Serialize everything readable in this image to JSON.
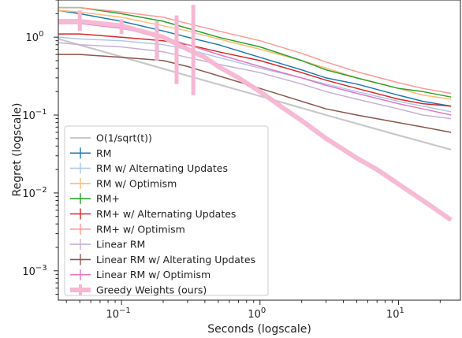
{
  "chart_data": {
    "type": "line",
    "title": "",
    "xlabel": "Seconds (logscale)",
    "ylabel": "Regret (logscale)",
    "xscale": "log",
    "yscale": "log",
    "xlim": [
      0.035,
      28
    ],
    "ylim": [
      0.00042,
      3.0
    ],
    "grid": false,
    "legend_position": "lower-left",
    "x_ticks": [
      {
        "value": 0.1,
        "label": "10",
        "exp": "−1"
      },
      {
        "value": 1,
        "label": "10",
        "exp": "0"
      },
      {
        "value": 10,
        "label": "10",
        "exp": "1"
      }
    ],
    "y_ticks": [
      {
        "value": 0.001,
        "label": "10",
        "exp": "−3"
      },
      {
        "value": 0.01,
        "label": "10",
        "exp": "−2"
      },
      {
        "value": 0.1,
        "label": "10",
        "exp": "−1"
      },
      {
        "value": 1,
        "label": "10",
        "exp": "0"
      }
    ],
    "series": [
      {
        "name": "O(1/sqrt(t))",
        "color": "#c8c8c8",
        "width": 2.2,
        "x": [
          0.035,
          0.1,
          0.3,
          1,
          3,
          10,
          24
        ],
        "y": [
          0.95,
          0.56,
          0.32,
          0.175,
          0.1,
          0.055,
          0.036
        ]
      },
      {
        "name": "RM",
        "color": "#1f77b4",
        "width": 1.5,
        "x": [
          0.035,
          0.05,
          0.1,
          0.2,
          0.3,
          0.5,
          1,
          2,
          3,
          5,
          10,
          15,
          24
        ],
        "y": [
          2.2,
          2.0,
          1.6,
          1.2,
          1.0,
          0.8,
          0.55,
          0.38,
          0.3,
          0.25,
          0.18,
          0.15,
          0.13
        ]
      },
      {
        "name": "RM w/ Alternating Updates",
        "color": "#aec7e8",
        "width": 1.5,
        "x": [
          0.035,
          0.05,
          0.1,
          0.2,
          0.3,
          0.5,
          1,
          2,
          3,
          5,
          10,
          15,
          24
        ],
        "y": [
          1.0,
          0.95,
          0.9,
          0.8,
          0.7,
          0.55,
          0.4,
          0.3,
          0.25,
          0.2,
          0.15,
          0.13,
          0.11
        ]
      },
      {
        "name": "RM w/ Optimism",
        "color": "#ffbb78",
        "width": 1.5,
        "x": [
          0.035,
          0.05,
          0.1,
          0.2,
          0.3,
          0.5,
          1,
          2,
          3,
          5,
          10,
          15,
          24
        ],
        "y": [
          2.2,
          2.1,
          1.8,
          1.4,
          1.2,
          0.95,
          0.7,
          0.5,
          0.4,
          0.3,
          0.22,
          0.18,
          0.16
        ]
      },
      {
        "name": "RM+",
        "color": "#2ca02c",
        "width": 1.5,
        "x": [
          0.035,
          0.05,
          0.1,
          0.2,
          0.3,
          0.5,
          1,
          2,
          3,
          5,
          10,
          15,
          24
        ],
        "y": [
          2.4,
          2.4,
          2.0,
          1.6,
          1.3,
          1.0,
          0.75,
          0.5,
          0.38,
          0.3,
          0.22,
          0.2,
          0.17
        ]
      },
      {
        "name": "RM+ w/ Alternating Updates",
        "color": "#d62728",
        "width": 1.5,
        "x": [
          0.035,
          0.05,
          0.1,
          0.2,
          0.3,
          0.5,
          1,
          2,
          3,
          5,
          10,
          15,
          24
        ],
        "y": [
          1.1,
          1.1,
          1.0,
          0.9,
          0.8,
          0.65,
          0.5,
          0.35,
          0.28,
          0.22,
          0.16,
          0.14,
          0.13
        ]
      },
      {
        "name": "RM+ w/ Optimism",
        "color": "#ff9896",
        "width": 1.5,
        "x": [
          0.035,
          0.05,
          0.1,
          0.2,
          0.3,
          0.5,
          1,
          2,
          3,
          5,
          10,
          15,
          24
        ],
        "y": [
          2.4,
          2.4,
          2.1,
          1.8,
          1.5,
          1.2,
          0.9,
          0.62,
          0.48,
          0.36,
          0.26,
          0.22,
          0.19
        ]
      },
      {
        "name": "Linear RM",
        "color": "#c5b0d5",
        "width": 1.5,
        "x": [
          0.035,
          0.05,
          0.1,
          0.2,
          0.3,
          0.5,
          1,
          2,
          3,
          5,
          10,
          15,
          24
        ],
        "y": [
          0.85,
          0.8,
          0.75,
          0.65,
          0.55,
          0.45,
          0.35,
          0.25,
          0.2,
          0.16,
          0.12,
          0.1,
          0.09
        ]
      },
      {
        "name": "Linear RM w/ Alterating Updates",
        "color": "#8c564b",
        "width": 1.5,
        "x": [
          0.035,
          0.05,
          0.1,
          0.2,
          0.3,
          0.5,
          1,
          2,
          3,
          5,
          10,
          15,
          24
        ],
        "y": [
          0.6,
          0.6,
          0.55,
          0.5,
          0.42,
          0.32,
          0.22,
          0.15,
          0.12,
          0.1,
          0.08,
          0.07,
          0.06
        ]
      },
      {
        "name": "Linear RM w/ Optimism",
        "color": "#e377c2",
        "width": 1.5,
        "x": [
          0.035,
          0.05,
          0.1,
          0.2,
          0.3,
          0.5,
          1,
          2,
          3,
          5,
          10,
          15,
          24
        ],
        "y": [
          1.5,
          1.5,
          1.3,
          1.0,
          0.8,
          0.6,
          0.42,
          0.3,
          0.24,
          0.19,
          0.14,
          0.12,
          0.1
        ]
      },
      {
        "name": "Greedy Weights (ours)",
        "color": "#f7b6d2",
        "width": 6,
        "x": [
          0.035,
          0.05,
          0.1,
          0.2,
          0.3,
          0.4,
          0.5,
          0.7,
          1,
          1.5,
          2,
          3,
          5,
          7,
          10,
          15,
          24
        ],
        "y": [
          1.6,
          1.6,
          1.4,
          1.0,
          0.7,
          0.55,
          0.42,
          0.3,
          0.2,
          0.12,
          0.085,
          0.05,
          0.028,
          0.02,
          0.013,
          0.008,
          0.0045
        ]
      }
    ],
    "errorbars": [
      {
        "x": 0.05,
        "ylo": 1.2,
        "yhi": 2.2
      },
      {
        "x": 0.1,
        "ylo": 1.1,
        "yhi": 1.7
      },
      {
        "x": 0.18,
        "ylo": 0.5,
        "yhi": 1.6
      },
      {
        "x": 0.25,
        "ylo": 0.25,
        "yhi": 1.9
      },
      {
        "x": 0.33,
        "ylo": 0.18,
        "yhi": 2.6
      }
    ]
  }
}
